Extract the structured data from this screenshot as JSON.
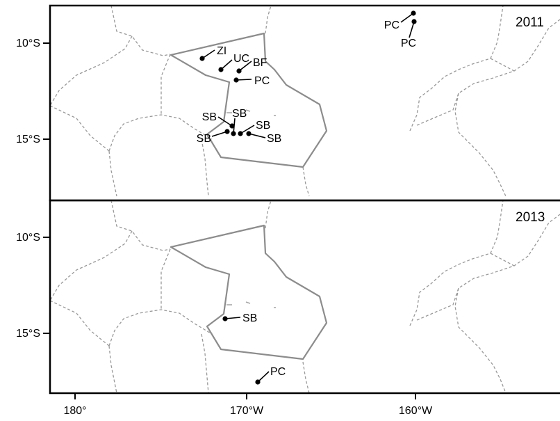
{
  "colors": {
    "frame": "#000000",
    "eez_dashed": "#999999",
    "zone_outline": "#8c8c8c",
    "point": "#000000"
  },
  "axes": {
    "x_ticks": [
      "180°",
      "170°W",
      "160°W"
    ],
    "y_ticks": [
      "10°S",
      "15°S"
    ]
  },
  "panels": [
    {
      "year": "2011",
      "points": [
        {
          "label": "ZI"
        },
        {
          "label": "UC"
        },
        {
          "label": "BF"
        },
        {
          "label": "PC"
        },
        {
          "label": "SB"
        },
        {
          "label": "SB"
        },
        {
          "label": "SB"
        },
        {
          "label": "SB"
        },
        {
          "label": "SB"
        },
        {
          "label": "PC"
        },
        {
          "label": "PC"
        }
      ]
    },
    {
      "year": "2013",
      "points": [
        {
          "label": "SB"
        },
        {
          "label": "PC"
        }
      ]
    }
  ]
}
